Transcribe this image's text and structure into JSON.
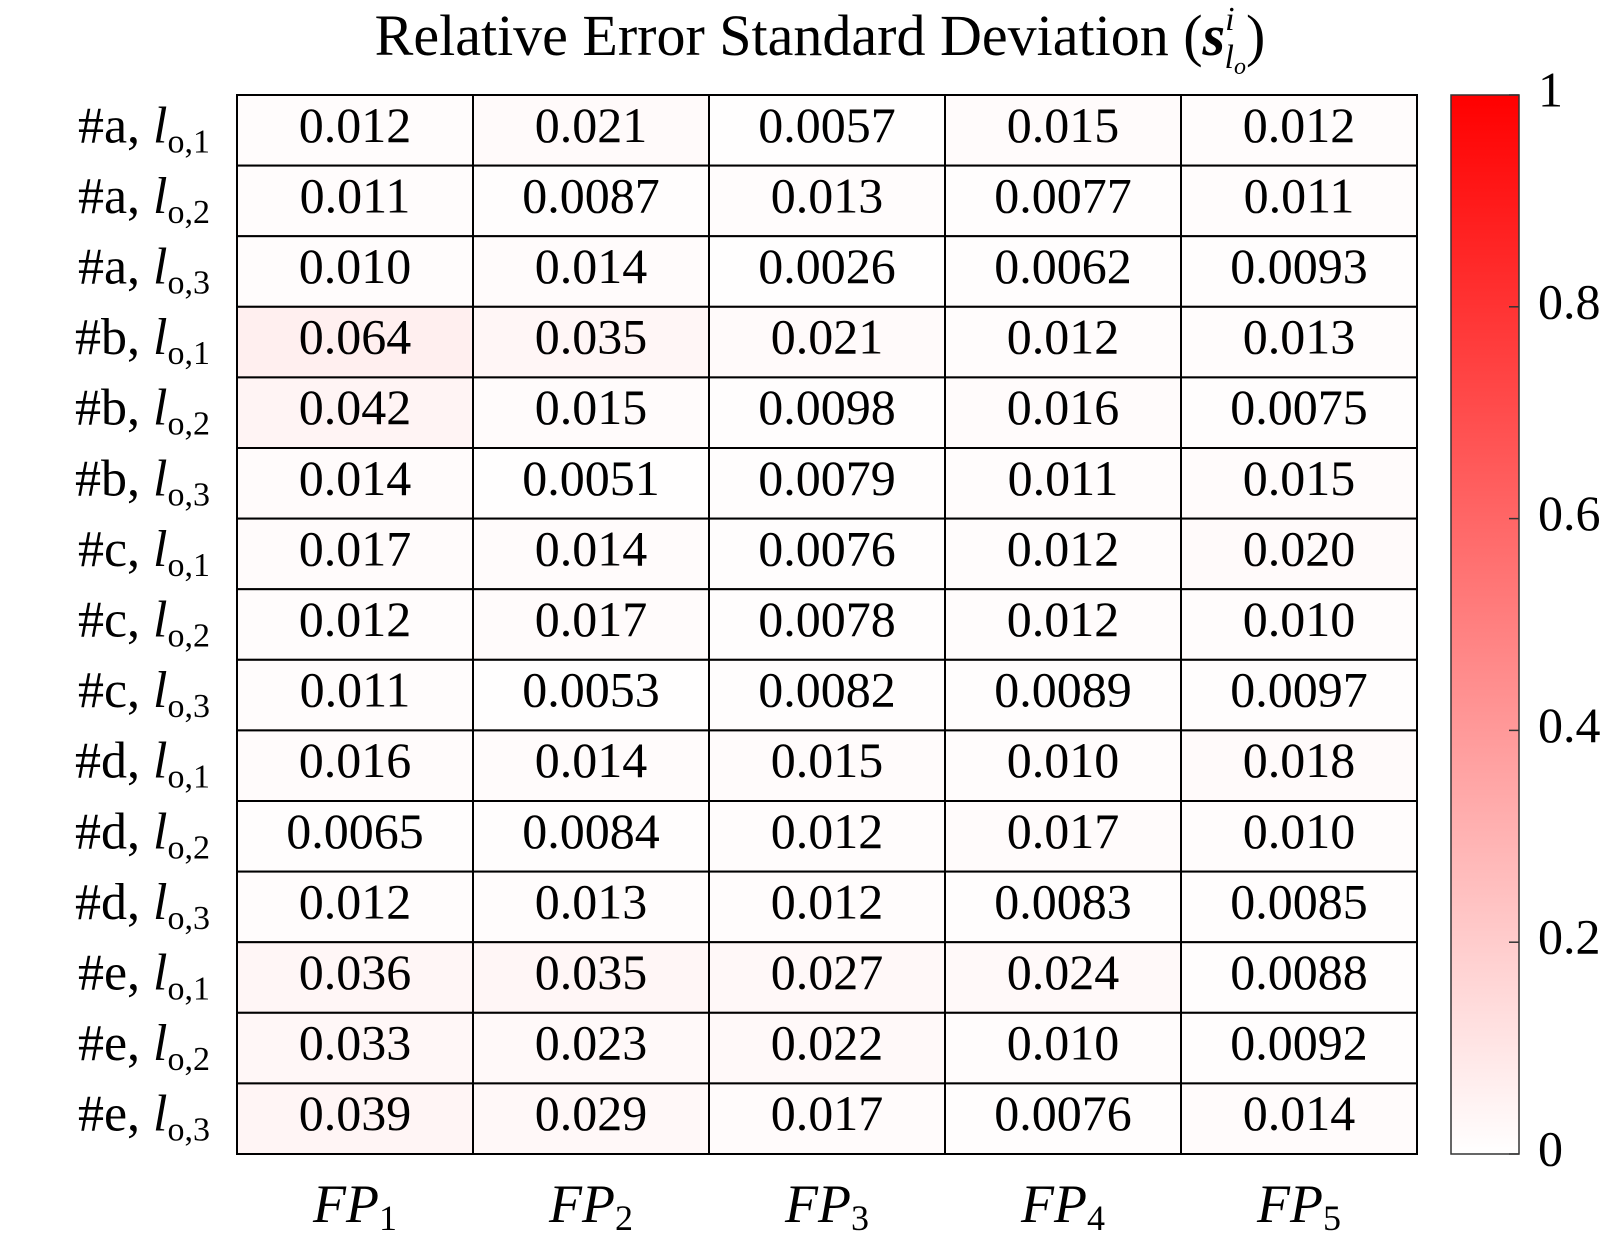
{
  "chart_data": {
    "type": "heatmap",
    "title": "Relative Error Standard Deviation (",
    "title_symbol": "s",
    "title_sup": "i",
    "title_sub": "l",
    "title_subsub": "o",
    "title_end": ")",
    "rows": [
      {
        "group": "#a, ",
        "var": "l",
        "sub": "o,1"
      },
      {
        "group": "#a, ",
        "var": "l",
        "sub": "o,2"
      },
      {
        "group": "#a, ",
        "var": "l",
        "sub": "o,3"
      },
      {
        "group": "#b, ",
        "var": "l",
        "sub": "o,1"
      },
      {
        "group": "#b, ",
        "var": "l",
        "sub": "o,2"
      },
      {
        "group": "#b, ",
        "var": "l",
        "sub": "o,3"
      },
      {
        "group": "#c, ",
        "var": "l",
        "sub": "o,1"
      },
      {
        "group": "#c, ",
        "var": "l",
        "sub": "o,2"
      },
      {
        "group": "#c, ",
        "var": "l",
        "sub": "o,3"
      },
      {
        "group": "#d, ",
        "var": "l",
        "sub": "o,1"
      },
      {
        "group": "#d, ",
        "var": "l",
        "sub": "o,2"
      },
      {
        "group": "#d, ",
        "var": "l",
        "sub": "o,3"
      },
      {
        "group": "#e, ",
        "var": "l",
        "sub": "o,1"
      },
      {
        "group": "#e, ",
        "var": "l",
        "sub": "o,2"
      },
      {
        "group": "#e, ",
        "var": "l",
        "sub": "o,3"
      }
    ],
    "columns": [
      {
        "text": "FP",
        "sub": "1"
      },
      {
        "text": "FP",
        "sub": "2"
      },
      {
        "text": "FP",
        "sub": "3"
      },
      {
        "text": "FP",
        "sub": "4"
      },
      {
        "text": "FP",
        "sub": "5"
      }
    ],
    "values": [
      [
        0.012,
        0.021,
        0.0057,
        0.015,
        0.012
      ],
      [
        0.011,
        0.0087,
        0.013,
        0.0077,
        0.011
      ],
      [
        0.01,
        0.014,
        0.0026,
        0.0062,
        0.0093
      ],
      [
        0.064,
        0.035,
        0.021,
        0.012,
        0.013
      ],
      [
        0.042,
        0.015,
        0.0098,
        0.016,
        0.0075
      ],
      [
        0.014,
        0.0051,
        0.0079,
        0.011,
        0.015
      ],
      [
        0.017,
        0.014,
        0.0076,
        0.012,
        0.02
      ],
      [
        0.012,
        0.017,
        0.0078,
        0.012,
        0.01
      ],
      [
        0.011,
        0.0053,
        0.0082,
        0.0089,
        0.0097
      ],
      [
        0.016,
        0.014,
        0.015,
        0.01,
        0.018
      ],
      [
        0.0065,
        0.0084,
        0.012,
        0.017,
        0.01
      ],
      [
        0.012,
        0.013,
        0.012,
        0.0083,
        0.0085
      ],
      [
        0.036,
        0.035,
        0.027,
        0.024,
        0.0088
      ],
      [
        0.033,
        0.023,
        0.022,
        0.01,
        0.0092
      ],
      [
        0.039,
        0.029,
        0.017,
        0.0076,
        0.014
      ]
    ],
    "value_labels": [
      [
        "0.012",
        "0.021",
        "0.0057",
        "0.015",
        "0.012"
      ],
      [
        "0.011",
        "0.0087",
        "0.013",
        "0.0077",
        "0.011"
      ],
      [
        "0.010",
        "0.014",
        "0.0026",
        "0.0062",
        "0.0093"
      ],
      [
        "0.064",
        "0.035",
        "0.021",
        "0.012",
        "0.013"
      ],
      [
        "0.042",
        "0.015",
        "0.0098",
        "0.016",
        "0.0075"
      ],
      [
        "0.014",
        "0.0051",
        "0.0079",
        "0.011",
        "0.015"
      ],
      [
        "0.017",
        "0.014",
        "0.0076",
        "0.012",
        "0.020"
      ],
      [
        "0.012",
        "0.017",
        "0.0078",
        "0.012",
        "0.010"
      ],
      [
        "0.011",
        "0.0053",
        "0.0082",
        "0.0089",
        "0.0097"
      ],
      [
        "0.016",
        "0.014",
        "0.015",
        "0.010",
        "0.018"
      ],
      [
        "0.0065",
        "0.0084",
        "0.012",
        "0.017",
        "0.010"
      ],
      [
        "0.012",
        "0.013",
        "0.012",
        "0.0083",
        "0.0085"
      ],
      [
        "0.036",
        "0.035",
        "0.027",
        "0.024",
        "0.0088"
      ],
      [
        "0.033",
        "0.023",
        "0.022",
        "0.010",
        "0.0092"
      ],
      [
        "0.039",
        "0.029",
        "0.017",
        "0.0076",
        "0.014"
      ]
    ],
    "clim": [
      0,
      1
    ],
    "cticks": [
      0,
      0.2,
      0.4,
      0.6,
      0.8,
      1
    ],
    "colormap": [
      "#ffffff",
      "#ff0000"
    ]
  }
}
